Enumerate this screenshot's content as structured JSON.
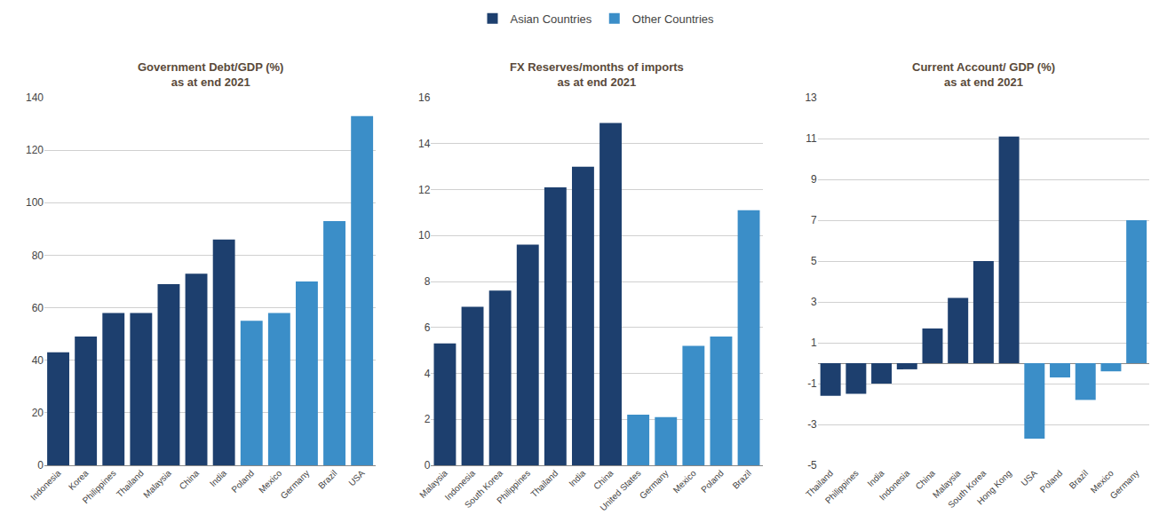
{
  "chart_data": [
    {
      "type": "bar",
      "title": "Government Debt/GDP (%)\nas at end 2021",
      "categories": [
        "Indonesia",
        "Korea",
        "Philippines",
        "Thailand",
        "Malaysia",
        "China",
        "India",
        "Poland",
        "Mexico",
        "Germany",
        "Brazil",
        "USA"
      ],
      "series": [
        {
          "name": "Asian Countries",
          "color": "#1d3f6e",
          "values": [
            43,
            49,
            58,
            58,
            69,
            73,
            86,
            null,
            null,
            null,
            null,
            null
          ]
        },
        {
          "name": "Other Countries",
          "color": "#3b8ec8",
          "values": [
            null,
            null,
            null,
            null,
            null,
            null,
            null,
            55,
            58,
            70,
            93,
            133
          ]
        }
      ],
      "ylim": [
        0,
        140
      ],
      "yticks": [
        0,
        20,
        40,
        60,
        80,
        100,
        120,
        140
      ],
      "grid": true,
      "legend": "upper center"
    },
    {
      "type": "bar",
      "title": "FX Reserves/months of imports\nas at end 2021",
      "categories": [
        "Malaysia",
        "Indonesia",
        "South Korea",
        "Philippines",
        "Thailand",
        "India",
        "China",
        "United States",
        "Germany",
        "Mexico",
        "Poland",
        "Brazil"
      ],
      "series": [
        {
          "name": "Asian Countries",
          "color": "#1d3f6e",
          "values": [
            5.3,
            6.9,
            7.6,
            9.6,
            12.1,
            13.0,
            14.9,
            null,
            null,
            null,
            null,
            null
          ]
        },
        {
          "name": "Other Countries",
          "color": "#3b8ec8",
          "values": [
            null,
            null,
            null,
            null,
            null,
            null,
            null,
            2.2,
            2.1,
            5.2,
            5.6,
            11.1
          ]
        }
      ],
      "ylim": [
        0,
        16
      ],
      "yticks": [
        0,
        2,
        4,
        6,
        8,
        10,
        12,
        14,
        16
      ],
      "grid": true,
      "legend": "upper center"
    },
    {
      "type": "bar",
      "title": "Current Account/ GDP (%)\nas at end 2021",
      "categories": [
        "Thailand",
        "Philippines",
        "India",
        "Indonesia",
        "China",
        "Malaysia",
        "South Korea",
        "Hong Kong",
        "USA",
        "Poland",
        "Brazil",
        "Mexico",
        "Germany"
      ],
      "series": [
        {
          "name": "Asian Countries",
          "color": "#1d3f6e",
          "values": [
            -1.6,
            -1.5,
            -1.0,
            -0.3,
            1.7,
            3.2,
            5.0,
            11.1,
            null,
            null,
            null,
            null,
            null
          ]
        },
        {
          "name": "Other Countries",
          "color": "#3b8ec8",
          "values": [
            null,
            null,
            null,
            null,
            null,
            null,
            null,
            null,
            -3.7,
            -0.7,
            -1.8,
            -0.4,
            7.0
          ]
        }
      ],
      "ylim": [
        -5,
        13
      ],
      "yticks": [
        -5,
        -3,
        -1,
        1,
        3,
        5,
        7,
        9,
        11,
        13
      ],
      "grid": true,
      "legend": "upper center"
    }
  ]
}
